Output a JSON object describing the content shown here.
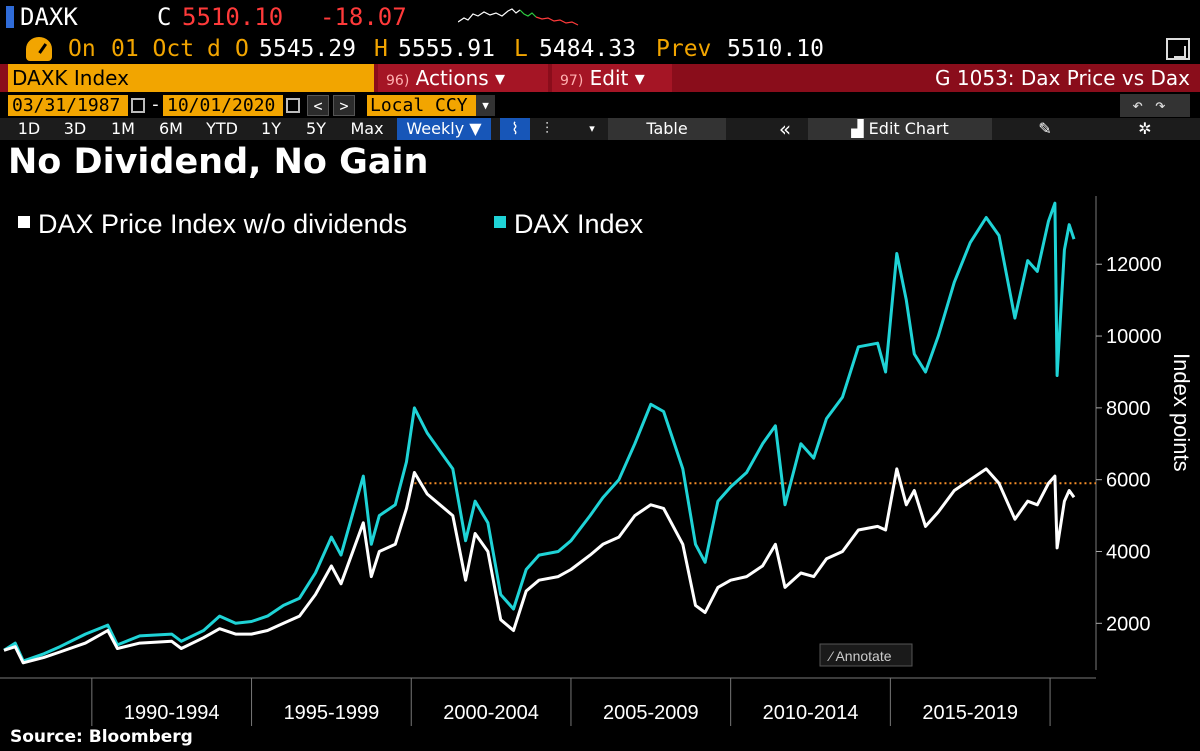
{
  "ticker": "DAXK",
  "quote": {
    "close_label": "C",
    "close": "5510.10",
    "change": "-18.07"
  },
  "ohlc": {
    "on_label": "On",
    "date": "01 Oct",
    "freq": "d",
    "open_label": "O",
    "open": "5545.29",
    "high_label": "H",
    "high": "5555.91",
    "low_label": "L",
    "low": "5484.33",
    "prev_label": "Prev",
    "prev": "5510.10"
  },
  "toolbar": {
    "security": "DAXK Index",
    "actions_num": "96)",
    "actions_label": "Actions ▾",
    "edit_num": "97)",
    "edit_label": "Edit ▾",
    "chart_id": "G 1053: Dax Price vs Dax"
  },
  "dates": {
    "start": "03/31/1987",
    "end": "10/01/2020",
    "sep": "-",
    "prev": "<",
    "next": ">",
    "currency": "Local CCY"
  },
  "ranges": [
    "1D",
    "3D",
    "1M",
    "6M",
    "YTD",
    "1Y",
    "5Y",
    "Max"
  ],
  "period": "Weekly ▼",
  "tools": {
    "table": "Table",
    "collapse": "«",
    "edit_chart": "Edit Chart",
    "annotate": "Annotate"
  },
  "colors": {
    "price": "#ffffff",
    "total": "#1fd3d6",
    "ref": "#f28c28",
    "accent": "#f2a500",
    "bar": "#8a0d1b"
  },
  "chart_data": {
    "type": "line",
    "title": "No Dividend, No Gain",
    "ylabel": "Index points",
    "ylim": [
      700,
      13900
    ],
    "yticks": [
      2000,
      4000,
      6000,
      8000,
      10000,
      12000
    ],
    "xlim": [
      1987.25,
      2021.25
    ],
    "xticks": [
      "1990-1994",
      "1995-1999",
      "2000-2004",
      "2005-2009",
      "2010-2014",
      "2015-2019"
    ],
    "xtick_bounds": [
      1990,
      1995,
      2000,
      2005,
      2010,
      2015,
      2020
    ],
    "ref_line": 5900,
    "legend": "top-left",
    "series": [
      {
        "name": "DAX Price Index w/o dividends",
        "color": "#ffffff",
        "points": [
          [
            1987.25,
            1250
          ],
          [
            1987.6,
            1350
          ],
          [
            1987.85,
            900
          ],
          [
            1988.5,
            1050
          ],
          [
            1989.0,
            1200
          ],
          [
            1989.8,
            1450
          ],
          [
            1990.5,
            1800
          ],
          [
            1990.8,
            1300
          ],
          [
            1991.5,
            1450
          ],
          [
            1992.5,
            1500
          ],
          [
            1992.8,
            1300
          ],
          [
            1993.5,
            1600
          ],
          [
            1994.0,
            1850
          ],
          [
            1994.5,
            1700
          ],
          [
            1995.0,
            1700
          ],
          [
            1995.5,
            1800
          ],
          [
            1996.0,
            2000
          ],
          [
            1996.5,
            2200
          ],
          [
            1997.0,
            2800
          ],
          [
            1997.5,
            3600
          ],
          [
            1997.8,
            3100
          ],
          [
            1998.5,
            4800
          ],
          [
            1998.75,
            3300
          ],
          [
            1999.0,
            4000
          ],
          [
            1999.5,
            4200
          ],
          [
            1999.85,
            5200
          ],
          [
            2000.1,
            6200
          ],
          [
            2000.5,
            5600
          ],
          [
            2000.9,
            5300
          ],
          [
            2001.3,
            5000
          ],
          [
            2001.7,
            3200
          ],
          [
            2002.0,
            4500
          ],
          [
            2002.4,
            4000
          ],
          [
            2002.8,
            2100
          ],
          [
            2003.2,
            1800
          ],
          [
            2003.6,
            2900
          ],
          [
            2004.0,
            3200
          ],
          [
            2004.6,
            3300
          ],
          [
            2005.0,
            3500
          ],
          [
            2005.6,
            3900
          ],
          [
            2006.0,
            4200
          ],
          [
            2006.5,
            4400
          ],
          [
            2007.0,
            5000
          ],
          [
            2007.5,
            5300
          ],
          [
            2007.9,
            5200
          ],
          [
            2008.5,
            4200
          ],
          [
            2008.9,
            2500
          ],
          [
            2009.2,
            2300
          ],
          [
            2009.6,
            3000
          ],
          [
            2010.0,
            3200
          ],
          [
            2010.5,
            3300
          ],
          [
            2011.0,
            3600
          ],
          [
            2011.4,
            4200
          ],
          [
            2011.7,
            3000
          ],
          [
            2012.2,
            3400
          ],
          [
            2012.6,
            3300
          ],
          [
            2013.0,
            3800
          ],
          [
            2013.5,
            4000
          ],
          [
            2014.0,
            4600
          ],
          [
            2014.6,
            4700
          ],
          [
            2014.85,
            4600
          ],
          [
            2015.2,
            6300
          ],
          [
            2015.5,
            5300
          ],
          [
            2015.75,
            5700
          ],
          [
            2016.1,
            4700
          ],
          [
            2016.5,
            5100
          ],
          [
            2017.0,
            5700
          ],
          [
            2017.5,
            6000
          ],
          [
            2018.0,
            6300
          ],
          [
            2018.4,
            5900
          ],
          [
            2018.9,
            4900
          ],
          [
            2019.3,
            5400
          ],
          [
            2019.6,
            5300
          ],
          [
            2019.95,
            5900
          ],
          [
            2020.15,
            6100
          ],
          [
            2020.22,
            4100
          ],
          [
            2020.45,
            5400
          ],
          [
            2020.6,
            5700
          ],
          [
            2020.75,
            5510
          ]
        ]
      },
      {
        "name": "DAX Index",
        "color": "#1fd3d6",
        "points": [
          [
            1987.25,
            1250
          ],
          [
            1987.6,
            1450
          ],
          [
            1987.85,
            950
          ],
          [
            1988.5,
            1150
          ],
          [
            1989.0,
            1350
          ],
          [
            1989.8,
            1700
          ],
          [
            1990.5,
            1950
          ],
          [
            1990.8,
            1400
          ],
          [
            1991.5,
            1650
          ],
          [
            1992.5,
            1700
          ],
          [
            1992.8,
            1500
          ],
          [
            1993.5,
            1800
          ],
          [
            1994.0,
            2200
          ],
          [
            1994.5,
            2000
          ],
          [
            1995.0,
            2050
          ],
          [
            1995.5,
            2200
          ],
          [
            1996.0,
            2500
          ],
          [
            1996.5,
            2700
          ],
          [
            1997.0,
            3400
          ],
          [
            1997.5,
            4400
          ],
          [
            1997.8,
            3900
          ],
          [
            1998.5,
            6100
          ],
          [
            1998.75,
            4200
          ],
          [
            1999.0,
            5000
          ],
          [
            1999.5,
            5300
          ],
          [
            1999.85,
            6500
          ],
          [
            2000.1,
            8000
          ],
          [
            2000.5,
            7300
          ],
          [
            2000.9,
            6800
          ],
          [
            2001.3,
            6300
          ],
          [
            2001.7,
            4300
          ],
          [
            2002.0,
            5400
          ],
          [
            2002.4,
            4800
          ],
          [
            2002.8,
            2800
          ],
          [
            2003.2,
            2400
          ],
          [
            2003.6,
            3500
          ],
          [
            2004.0,
            3900
          ],
          [
            2004.6,
            4000
          ],
          [
            2005.0,
            4300
          ],
          [
            2005.6,
            5000
          ],
          [
            2006.0,
            5500
          ],
          [
            2006.5,
            6000
          ],
          [
            2007.0,
            7000
          ],
          [
            2007.5,
            8100
          ],
          [
            2007.9,
            7900
          ],
          [
            2008.5,
            6300
          ],
          [
            2008.9,
            4200
          ],
          [
            2009.2,
            3700
          ],
          [
            2009.6,
            5400
          ],
          [
            2010.0,
            5800
          ],
          [
            2010.5,
            6200
          ],
          [
            2011.0,
            7000
          ],
          [
            2011.4,
            7500
          ],
          [
            2011.7,
            5300
          ],
          [
            2012.2,
            7000
          ],
          [
            2012.6,
            6600
          ],
          [
            2013.0,
            7700
          ],
          [
            2013.5,
            8300
          ],
          [
            2014.0,
            9700
          ],
          [
            2014.6,
            9800
          ],
          [
            2014.85,
            9000
          ],
          [
            2015.2,
            12300
          ],
          [
            2015.5,
            11000
          ],
          [
            2015.75,
            9500
          ],
          [
            2016.1,
            9000
          ],
          [
            2016.5,
            10000
          ],
          [
            2017.0,
            11500
          ],
          [
            2017.5,
            12600
          ],
          [
            2018.0,
            13300
          ],
          [
            2018.4,
            12800
          ],
          [
            2018.9,
            10500
          ],
          [
            2019.3,
            12100
          ],
          [
            2019.6,
            11800
          ],
          [
            2019.95,
            13200
          ],
          [
            2020.15,
            13700
          ],
          [
            2020.22,
            8900
          ],
          [
            2020.45,
            12400
          ],
          [
            2020.6,
            13100
          ],
          [
            2020.75,
            12700
          ]
        ]
      }
    ]
  }
}
